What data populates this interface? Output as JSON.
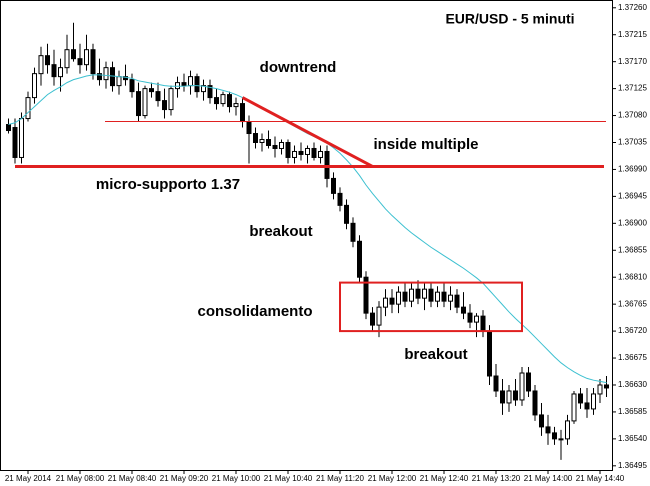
{
  "chart_data": {
    "type": "candlestick",
    "title": "EUR/USD - 5 minuti",
    "annotations": [
      "downtrend",
      "inside multiple",
      "micro-supporto 1.37",
      "breakout",
      "consolidamento",
      "breakout"
    ],
    "categories": [
      null,
      null,
      null,
      "21 May 2014",
      null,
      null,
      null,
      null,
      null,
      null,
      null,
      "21 May 08:00",
      null,
      null,
      null,
      null,
      null,
      null,
      null,
      "21 May 08:40",
      null,
      null,
      null,
      null,
      null,
      null,
      null,
      "21 May 09:20",
      null,
      null,
      null,
      null,
      null,
      null,
      null,
      "21 May 10:00",
      null,
      null,
      null,
      null,
      null,
      null,
      null,
      "21 May 10:40",
      null,
      null,
      null,
      null,
      null,
      null,
      null,
      "21 May 11:20",
      null,
      null,
      null,
      null,
      null,
      null,
      null,
      "21 May 12:00",
      null,
      null,
      null,
      null,
      null,
      null,
      null,
      "21 May 12:40",
      null,
      null,
      null,
      null,
      null,
      null,
      null,
      "21 May 13:20",
      null,
      null,
      null,
      null,
      null,
      null,
      null,
      "21 May 14:00",
      null,
      null,
      null,
      null,
      null,
      null,
      null,
      "21 May 14:40",
      null
    ],
    "open": [
      1.37065,
      1.3706,
      1.3701,
      1.37075,
      1.3711,
      1.3715,
      1.3718,
      1.37165,
      1.37145,
      1.3716,
      1.3719,
      1.37175,
      1.37165,
      1.3719,
      1.3715,
      1.3714,
      1.3716,
      1.3713,
      1.37145,
      1.3714,
      1.3712,
      1.3708,
      1.37125,
      1.3712,
      1.37105,
      1.3709,
      1.37125,
      1.37135,
      1.3713,
      1.37145,
      1.3712,
      1.3713,
      1.3711,
      1.371,
      1.37115,
      1.37095,
      1.371,
      1.3707,
      1.3705,
      1.37035,
      1.3704,
      1.3703,
      1.37025,
      1.37035,
      1.3701,
      1.3702,
      1.37015,
      1.37025,
      1.3701,
      1.3702,
      1.36975,
      1.3695,
      1.3693,
      1.369,
      1.3687,
      1.3681,
      1.3675,
      1.3673,
      1.3676,
      1.36775,
      1.36765,
      1.36785,
      1.3677,
      1.3679,
      1.36775,
      1.3679,
      1.3677,
      1.36785,
      1.3677,
      1.3678,
      1.3676,
      1.3675,
      1.36735,
      1.36745,
      1.3672,
      1.36645,
      1.3662,
      1.366,
      1.3662,
      1.36605,
      1.3665,
      1.3662,
      1.3658,
      1.3656,
      1.3655,
      1.3654,
      1.3654,
      1.3657,
      1.36615,
      1.366,
      1.3659,
      1.36615,
      1.3663
    ],
    "high": [
      1.37075,
      1.37075,
      1.37085,
      1.3712,
      1.3716,
      1.37195,
      1.372,
      1.3719,
      1.37175,
      1.37215,
      1.37235,
      1.372,
      1.37215,
      1.372,
      1.37175,
      1.3717,
      1.3717,
      1.37155,
      1.37165,
      1.3715,
      1.37135,
      1.3713,
      1.37135,
      1.37135,
      1.37125,
      1.3713,
      1.37145,
      1.3715,
      1.37155,
      1.3715,
      1.3714,
      1.3714,
      1.37125,
      1.3712,
      1.3712,
      1.3711,
      1.3711,
      1.3708,
      1.3706,
      1.3705,
      1.37055,
      1.37045,
      1.3704,
      1.3704,
      1.3703,
      1.37035,
      1.3703,
      1.37035,
      1.3703,
      1.3703,
      1.36985,
      1.3696,
      1.3694,
      1.3691,
      1.3688,
      1.3682,
      1.3676,
      1.3677,
      1.3679,
      1.3679,
      1.36795,
      1.368,
      1.368,
      1.36805,
      1.368,
      1.368,
      1.36795,
      1.368,
      1.36795,
      1.3679,
      1.36785,
      1.36765,
      1.3675,
      1.36755,
      1.3673,
      1.36665,
      1.3664,
      1.3663,
      1.3664,
      1.3666,
      1.3666,
      1.3663,
      1.366,
      1.3658,
      1.3656,
      1.36555,
      1.3658,
      1.3662,
      1.36625,
      1.36625,
      1.36625,
      1.3664,
      1.36645
    ],
    "low": [
      1.3705,
      1.37,
      1.37,
      1.3707,
      1.371,
      1.3713,
      1.3715,
      1.3713,
      1.3712,
      1.3715,
      1.3717,
      1.3715,
      1.37155,
      1.3714,
      1.3713,
      1.37125,
      1.3712,
      1.37115,
      1.3713,
      1.3711,
      1.3707,
      1.37075,
      1.3711,
      1.37095,
      1.37075,
      1.3708,
      1.3711,
      1.3712,
      1.37115,
      1.3711,
      1.37105,
      1.371,
      1.3709,
      1.37095,
      1.37085,
      1.3708,
      1.3706,
      1.37,
      1.37025,
      1.3702,
      1.37025,
      1.3701,
      1.37015,
      1.37,
      1.37,
      1.37005,
      1.37,
      1.37005,
      1.37,
      1.3696,
      1.3694,
      1.3692,
      1.3689,
      1.3686,
      1.368,
      1.3674,
      1.3672,
      1.3671,
      1.36745,
      1.3675,
      1.3675,
      1.3676,
      1.3676,
      1.36765,
      1.36755,
      1.3676,
      1.3676,
      1.3676,
      1.36755,
      1.3675,
      1.3674,
      1.36725,
      1.3671,
      1.3671,
      1.3663,
      1.3661,
      1.3658,
      1.36585,
      1.36595,
      1.36595,
      1.3661,
      1.3657,
      1.36545,
      1.3653,
      1.3653,
      1.36505,
      1.3653,
      1.36565,
      1.3659,
      1.36575,
      1.3658,
      1.366,
      1.3661
    ],
    "close": [
      1.37055,
      1.3701,
      1.37075,
      1.3711,
      1.3715,
      1.3718,
      1.37165,
      1.37145,
      1.3716,
      1.3719,
      1.37175,
      1.37165,
      1.3719,
      1.3715,
      1.3714,
      1.3716,
      1.3713,
      1.37145,
      1.3714,
      1.3712,
      1.3708,
      1.37125,
      1.3712,
      1.37105,
      1.3709,
      1.37125,
      1.37135,
      1.3713,
      1.37145,
      1.3712,
      1.3713,
      1.3711,
      1.371,
      1.37115,
      1.37095,
      1.371,
      1.3707,
      1.3705,
      1.37035,
      1.3704,
      1.3703,
      1.37025,
      1.37035,
      1.3701,
      1.3702,
      1.37015,
      1.37025,
      1.3701,
      1.3702,
      1.36975,
      1.3695,
      1.3693,
      1.369,
      1.3687,
      1.3681,
      1.3675,
      1.3673,
      1.3676,
      1.36775,
      1.36765,
      1.36785,
      1.3677,
      1.3679,
      1.36775,
      1.3679,
      1.3677,
      1.36785,
      1.3677,
      1.3678,
      1.3676,
      1.3675,
      1.36735,
      1.36745,
      1.3672,
      1.36645,
      1.3662,
      1.366,
      1.3662,
      1.36605,
      1.3665,
      1.3662,
      1.3658,
      1.3656,
      1.3655,
      1.3654,
      1.3654,
      1.3657,
      1.36615,
      1.366,
      1.3659,
      1.36615,
      1.3663,
      1.36625
    ],
    "up_color": "#ffffff",
    "down_color": "#000000",
    "ma": {
      "color": "#3cc0d0",
      "values": [
        1.37065,
        1.37068,
        1.37075,
        1.37085,
        1.37095,
        1.37105,
        1.37115,
        1.37122,
        1.37128,
        1.37135,
        1.3714,
        1.37143,
        1.37146,
        1.37148,
        1.37148,
        1.37147,
        1.37146,
        1.37145,
        1.37144,
        1.37142,
        1.37138,
        1.37136,
        1.37134,
        1.37132,
        1.3713,
        1.37129,
        1.37129,
        1.37129,
        1.3713,
        1.3713,
        1.37129,
        1.37127,
        1.37125,
        1.37122,
        1.37119,
        1.37115,
        1.3711,
        1.37104,
        1.37098,
        1.37092,
        1.37086,
        1.3708,
        1.37074,
        1.37068,
        1.37062,
        1.37056,
        1.3705,
        1.37045,
        1.3704,
        1.37034,
        1.37026,
        1.37017,
        1.37006,
        1.36994,
        1.3698,
        1.36964,
        1.3695,
        1.36937,
        1.36924,
        1.36913,
        1.36903,
        1.36893,
        1.36884,
        1.36876,
        1.36868,
        1.3686,
        1.36853,
        1.36846,
        1.36839,
        1.36832,
        1.36825,
        1.36817,
        1.36809,
        1.368,
        1.36788,
        1.36776,
        1.36764,
        1.36752,
        1.36741,
        1.36731,
        1.36721,
        1.3671,
        1.36699,
        1.36688,
        1.36677,
        1.36667,
        1.36659,
        1.36652,
        1.36646,
        1.36641,
        1.36638,
        1.36636,
        1.36634
      ]
    },
    "drawing_color": "#e02020",
    "resistance": 1.3707,
    "support": 1.36995,
    "trendline": [
      1.3711,
      1.36995
    ],
    "box": [
      1.36801,
      1.3672
    ],
    "ylim": [
      1.36488,
      1.37273
    ],
    "yticks": [
      {
        "value": 1.3726,
        "label": "1.37260"
      },
      {
        "value": 1.37215,
        "label": "1.37215"
      },
      {
        "value": 1.3717,
        "label": "1.37170"
      },
      {
        "value": 1.37125,
        "label": "1.37125"
      },
      {
        "value": 1.3708,
        "label": "1.37080"
      },
      {
        "value": 1.37035,
        "label": "1.37035"
      },
      {
        "value": 1.3699,
        "label": "1.36990"
      },
      {
        "value": 1.36945,
        "label": "1.36945"
      },
      {
        "value": 1.369,
        "label": "1.36900"
      },
      {
        "value": 1.36855,
        "label": "1.36855"
      },
      {
        "value": 1.3681,
        "label": "1.36810"
      },
      {
        "value": 1.36765,
        "label": "1.36765"
      },
      {
        "value": 1.3672,
        "label": "1.36720"
      },
      {
        "value": 1.36675,
        "label": "1.36675"
      },
      {
        "value": 1.3663,
        "label": "1.36630"
      },
      {
        "value": 1.36585,
        "label": "1.36585"
      },
      {
        "value": 1.3654,
        "label": "1.36540"
      },
      {
        "value": 1.36495,
        "label": "1.36495"
      }
    ]
  }
}
